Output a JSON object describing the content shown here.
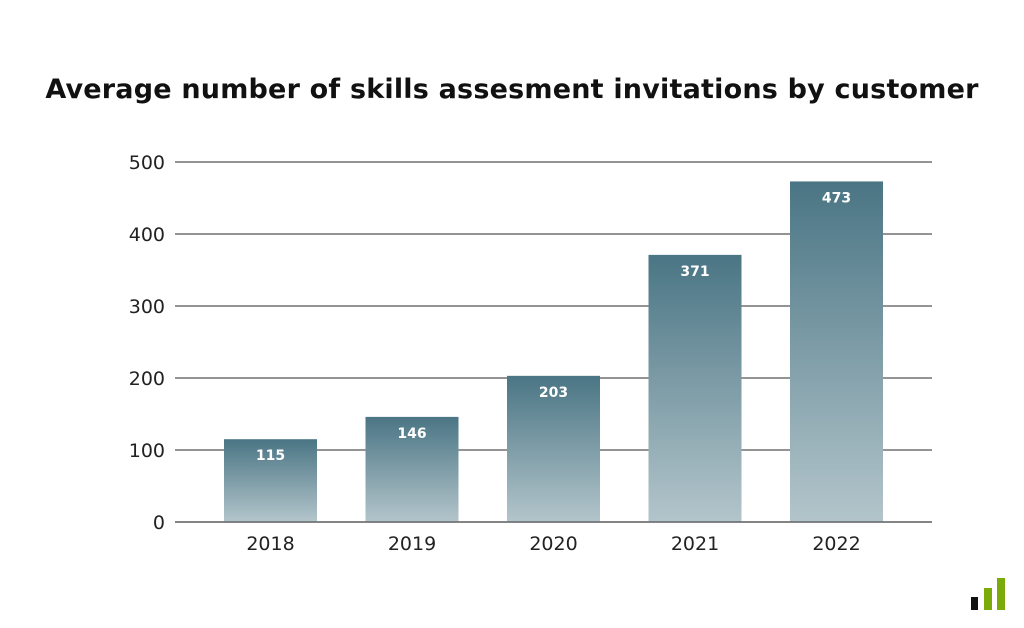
{
  "chart_data": {
    "type": "bar",
    "title": "Average number of skills assesment invitations by customer",
    "categories": [
      "2018",
      "2019",
      "2020",
      "2021",
      "2022"
    ],
    "values": [
      115,
      146,
      203,
      371,
      473
    ],
    "data_labels": [
      "115",
      "146",
      "203",
      "371",
      "473"
    ],
    "xlabel": "",
    "ylabel": "",
    "ylim": [
      0,
      500
    ],
    "yticks": [
      "0",
      "100",
      "200",
      "300",
      "400",
      "500"
    ],
    "grid": true,
    "colors": {
      "bar_top": "#4a7584",
      "bar_bottom": "#b3c5cb",
      "grid": "#555555"
    }
  },
  "logo": {
    "colors": [
      "#111111",
      "#7aab0a",
      "#7aab0a"
    ]
  }
}
